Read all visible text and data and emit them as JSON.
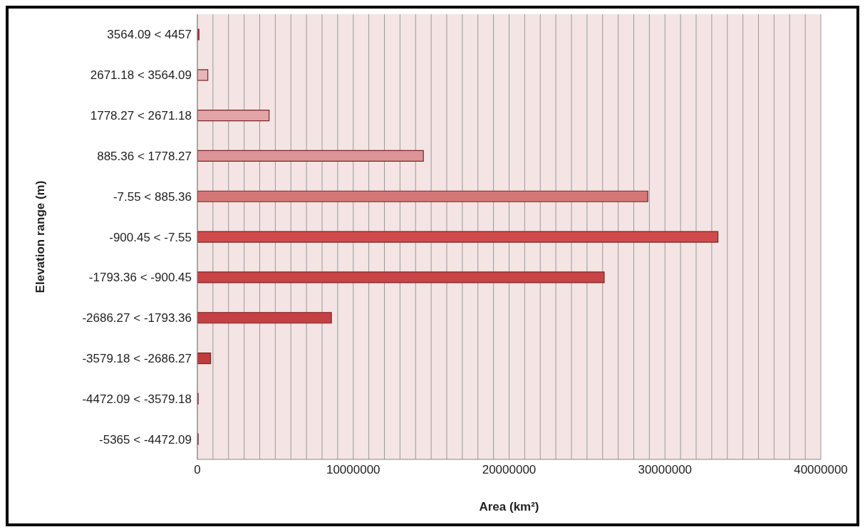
{
  "chart_data": {
    "type": "bar",
    "orientation": "horizontal",
    "xlabel": "Area (km²)",
    "ylabel": "Elevation range (m)",
    "categories": [
      "3564.09 < 4457",
      "2671.18 < 3564.09",
      "1778.27 < 2671.18",
      "885.36 < 1778.27",
      "-7.55 < 885.36",
      "-900.45 < -7.55",
      "-1793.36 < -900.45",
      "-2686.27 < -1793.36",
      "-3579.18 < -2686.27",
      "-4472.09 < -3579.18",
      "-5365 < -4472.09"
    ],
    "values": [
      100000,
      670000,
      4600000,
      14500000,
      28900000,
      33400000,
      26100000,
      8600000,
      850000,
      50000,
      50000
    ],
    "colors": [
      "#b04446",
      "#e8b6b8",
      "#e2a4a6",
      "#dc9496",
      "#d57678",
      "#d04a4c",
      "#c84446",
      "#c44042",
      "#c03c3e",
      "#b83a3a",
      "#b83a3a"
    ],
    "xlim": [
      0,
      40000000
    ],
    "xticks": [
      0,
      {
        "value": 1000000,
        "label": null
      },
      {
        "value": 2000000,
        "label": null
      },
      {
        "value": 3000000,
        "label": null
      },
      {
        "value": 4000000,
        "label": null
      },
      {
        "value": 5000000,
        "label": null
      },
      {
        "value": 6000000,
        "label": null
      },
      {
        "value": 7000000,
        "label": null
      },
      {
        "value": 8000000,
        "label": null
      },
      {
        "value": 9000000,
        "label": null
      },
      10000000,
      {
        "value": 11000000,
        "label": null
      },
      {
        "value": 12000000,
        "label": null
      },
      {
        "value": 13000000,
        "label": null
      },
      {
        "value": 14000000,
        "label": null
      },
      {
        "value": 15000000,
        "label": null
      },
      {
        "value": 16000000,
        "label": null
      },
      {
        "value": 17000000,
        "label": null
      },
      {
        "value": 18000000,
        "label": null
      },
      {
        "value": 19000000,
        "label": null
      },
      20000000,
      {
        "value": 21000000,
        "label": null
      },
      {
        "value": 22000000,
        "label": null
      },
      {
        "value": 23000000,
        "label": null
      },
      {
        "value": 24000000,
        "label": null
      },
      {
        "value": 25000000,
        "label": null
      },
      {
        "value": 26000000,
        "label": null
      },
      {
        "value": 27000000,
        "label": null
      },
      {
        "value": 28000000,
        "label": null
      },
      {
        "value": 29000000,
        "label": null
      },
      30000000,
      {
        "value": 31000000,
        "label": null
      },
      {
        "value": 32000000,
        "label": null
      },
      {
        "value": 33000000,
        "label": null
      },
      {
        "value": 34000000,
        "label": null
      },
      {
        "value": 35000000,
        "label": null
      },
      {
        "value": 36000000,
        "label": null
      },
      {
        "value": 37000000,
        "label": null
      },
      {
        "value": 38000000,
        "label": null
      },
      {
        "value": 39000000,
        "label": null
      },
      40000000
    ],
    "grid": "x"
  }
}
